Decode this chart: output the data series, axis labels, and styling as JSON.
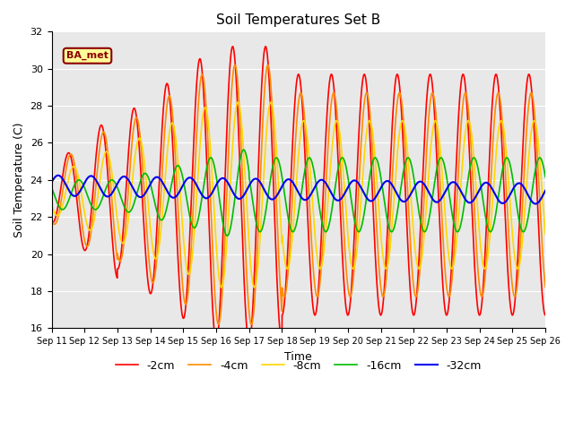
{
  "title": "Soil Temperatures Set B",
  "xlabel": "Time",
  "ylabel": "Soil Temperature (C)",
  "ylim": [
    16,
    32
  ],
  "x_tick_labels": [
    "Sep 11",
    "Sep 12",
    "Sep 13",
    "Sep 14",
    "Sep 15",
    "Sep 16",
    "Sep 17",
    "Sep 18",
    "Sep 19",
    "Sep 20",
    "Sep 21",
    "Sep 22",
    "Sep 23",
    "Sep 24",
    "Sep 25",
    "Sep 26"
  ],
  "series": [
    {
      "label": "-2cm",
      "color": "#FF0000",
      "lw": 1.2
    },
    {
      "label": "-4cm",
      "color": "#FF8C00",
      "lw": 1.2
    },
    {
      "label": "-8cm",
      "color": "#FFD700",
      "lw": 1.2
    },
    {
      "label": "-16cm",
      "color": "#00BB00",
      "lw": 1.2
    },
    {
      "label": "-32cm",
      "color": "#0000EE",
      "lw": 1.5
    }
  ],
  "annotation_text": "BA_met",
  "bg_color": "#E8E8E8",
  "legend_ncol": 5
}
